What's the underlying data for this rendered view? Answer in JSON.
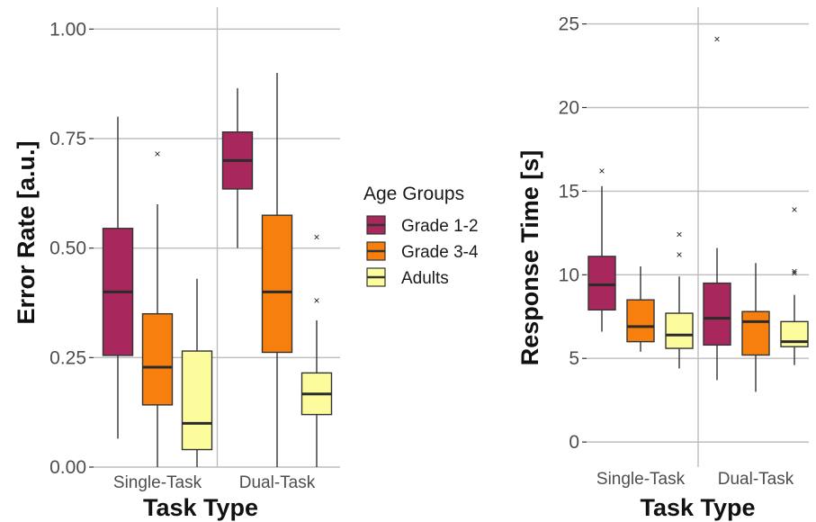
{
  "chart_data": [
    {
      "type": "box",
      "categories": [
        "Single-Task",
        "Dual-Task"
      ],
      "xlabel": "Task Type",
      "ylabel": "Error Rate [a.u.]",
      "ylim": [
        0,
        1.05
      ],
      "yticks": [
        0,
        0.25,
        0.5,
        0.75,
        1.0
      ],
      "ytick_labels": [
        "0.00",
        "0.25",
        "0.50",
        "0.75",
        "1.00"
      ],
      "grid": true,
      "series": [
        {
          "name": "Grade 1-2",
          "color": "#A8285D",
          "boxes": [
            {
              "lower_whisker": 0.065,
              "q1": 0.255,
              "median": 0.4,
              "q3": 0.545,
              "upper_whisker": 0.8,
              "outliers": []
            },
            {
              "lower_whisker": 0.5,
              "q1": 0.635,
              "median": 0.7,
              "q3": 0.765,
              "upper_whisker": 0.865,
              "outliers": []
            }
          ]
        },
        {
          "name": "Grade 3-4",
          "color": "#F77F0E",
          "boxes": [
            {
              "lower_whisker": 0.0,
              "q1": 0.142,
              "median": 0.228,
              "q3": 0.35,
              "upper_whisker": 0.6,
              "outliers": [
                0.715
              ]
            },
            {
              "lower_whisker": 0.0,
              "q1": 0.262,
              "median": 0.4,
              "q3": 0.575,
              "upper_whisker": 0.9,
              "outliers": []
            }
          ]
        },
        {
          "name": "Adults",
          "color": "#FCFC9C",
          "boxes": [
            {
              "lower_whisker": 0.0,
              "q1": 0.04,
              "median": 0.1,
              "q3": 0.265,
              "upper_whisker": 0.43,
              "outliers": []
            },
            {
              "lower_whisker": 0.0,
              "q1": 0.12,
              "median": 0.167,
              "q3": 0.215,
              "upper_whisker": 0.335,
              "outliers": [
                0.38,
                0.525
              ]
            }
          ]
        }
      ]
    },
    {
      "type": "box",
      "categories": [
        "Single-Task",
        "Dual-Task"
      ],
      "xlabel": "Task Type",
      "ylabel": "Response Time [s]",
      "ylim": [
        -1.5,
        26
      ],
      "yticks": [
        0,
        5,
        10,
        15,
        20,
        25
      ],
      "ytick_labels": [
        "0",
        "5",
        "10",
        "15",
        "20",
        "25"
      ],
      "grid": true,
      "series": [
        {
          "name": "Grade 1-2",
          "color": "#A8285D",
          "boxes": [
            {
              "lower_whisker": 6.6,
              "q1": 7.9,
              "median": 9.4,
              "q3": 11.1,
              "upper_whisker": 15.3,
              "outliers": [
                16.2
              ]
            },
            {
              "lower_whisker": 3.7,
              "q1": 5.8,
              "median": 7.4,
              "q3": 9.5,
              "upper_whisker": 11.6,
              "outliers": [
                24.1
              ]
            }
          ]
        },
        {
          "name": "Grade 3-4",
          "color": "#F77F0E",
          "boxes": [
            {
              "lower_whisker": 5.4,
              "q1": 6.0,
              "median": 6.9,
              "q3": 8.5,
              "upper_whisker": 10.5,
              "outliers": []
            },
            {
              "lower_whisker": 3.0,
              "q1": 5.2,
              "median": 7.2,
              "q3": 7.8,
              "upper_whisker": 10.7,
              "outliers": []
            }
          ]
        },
        {
          "name": "Adults",
          "color": "#FCFC9C",
          "boxes": [
            {
              "lower_whisker": 4.4,
              "q1": 5.6,
              "median": 6.4,
              "q3": 7.7,
              "upper_whisker": 9.9,
              "outliers": [
                11.2,
                12.4
              ]
            },
            {
              "lower_whisker": 4.6,
              "q1": 5.7,
              "median": 6.0,
              "q3": 7.2,
              "upper_whisker": 8.8,
              "outliers": [
                10.1,
                10.2,
                13.9
              ]
            }
          ]
        }
      ]
    }
  ],
  "legend": {
    "title": "Age Groups",
    "placement": "center",
    "items": [
      "Grade 1-2",
      "Grade 3-4",
      "Adults"
    ]
  }
}
